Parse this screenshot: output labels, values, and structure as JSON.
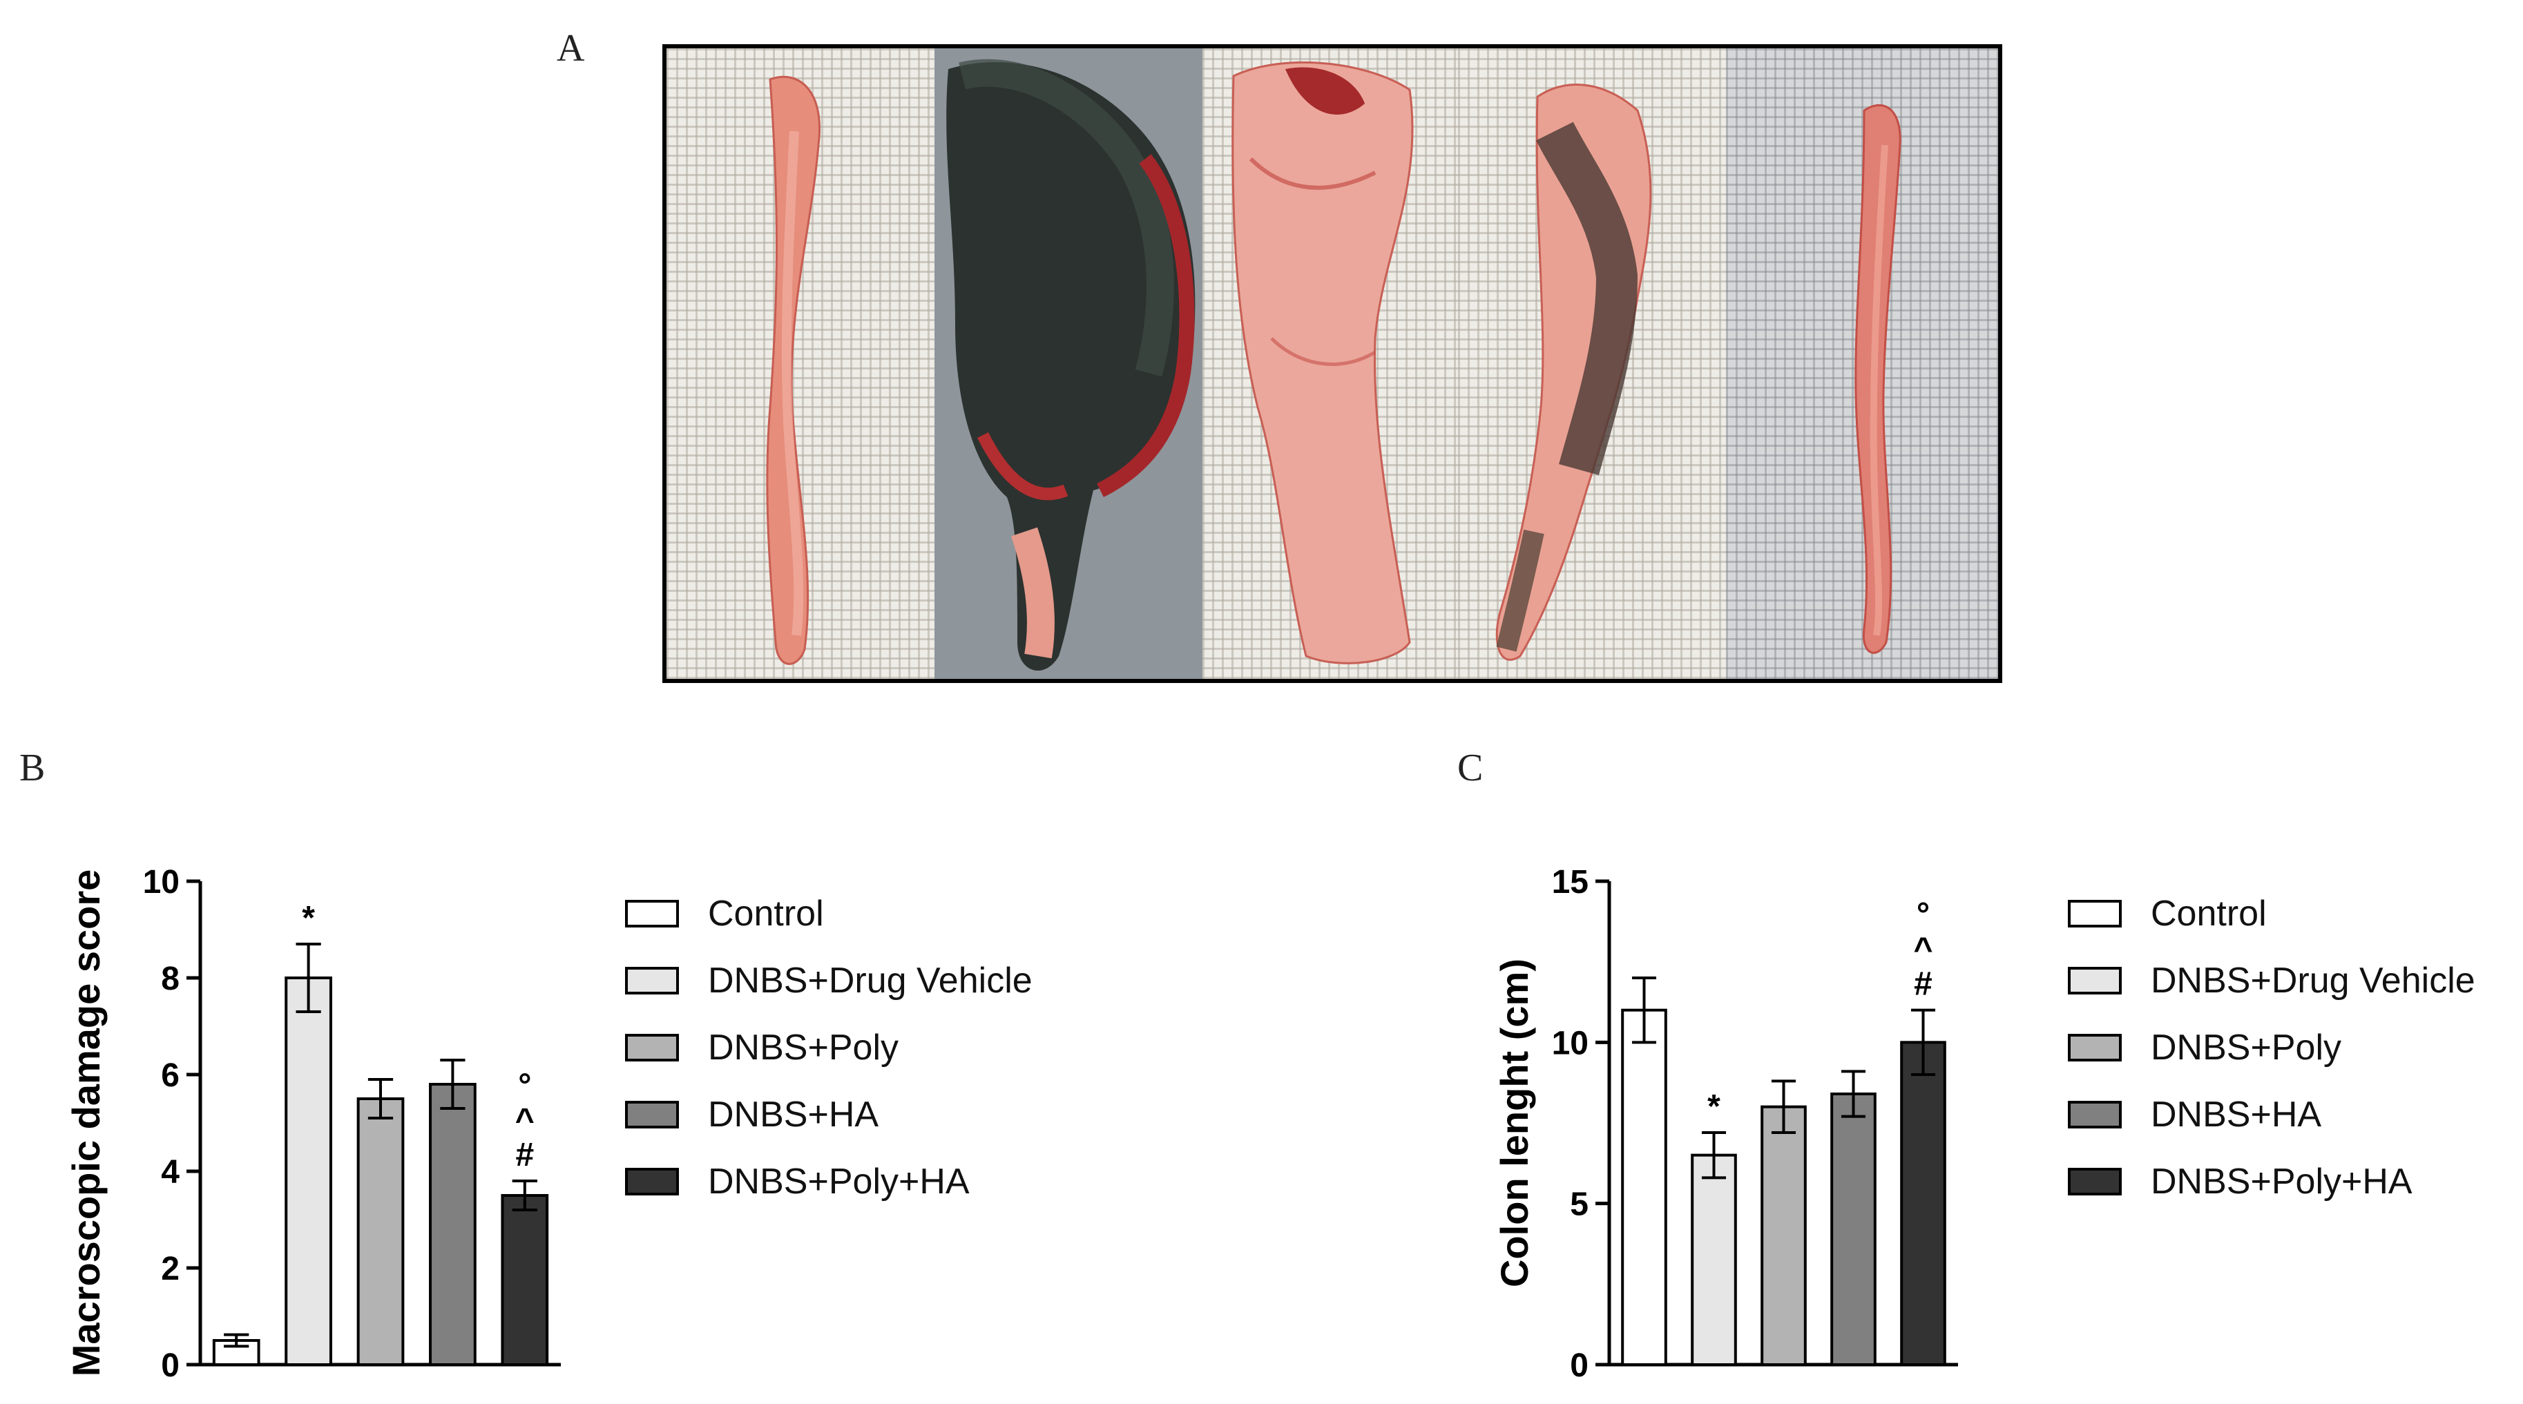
{
  "panels": {
    "a": "A",
    "b": "B",
    "c": "C"
  },
  "colors": {
    "series": [
      "#ffffff",
      "#e6e6e6",
      "#b3b3b3",
      "#808080",
      "#333333"
    ],
    "axis": "#000000"
  },
  "legend": [
    "Control",
    "DNBS+Drug Vehicle",
    "DNBS+Poly",
    "DNBS+HA",
    "DNBS+Poly+HA"
  ],
  "chart_data": [
    {
      "type": "bar",
      "panel": "B",
      "title": "",
      "xlabel": "",
      "ylabel": "Macroscopic damage score",
      "categories": [
        "Control",
        "DNBS+Drug Vehicle",
        "DNBS+Poly",
        "DNBS+HA",
        "DNBS+Poly+HA"
      ],
      "values": [
        0.5,
        8.0,
        5.5,
        5.8,
        3.5
      ],
      "errors": [
        0.12,
        0.7,
        0.4,
        0.5,
        0.3
      ],
      "annotations": [
        [],
        [
          "*"
        ],
        [],
        [],
        [
          "#",
          "^",
          "°"
        ]
      ],
      "ylim": [
        0,
        10
      ],
      "yticks": [
        0,
        2,
        4,
        6,
        8,
        10
      ],
      "legend_position": "right"
    },
    {
      "type": "bar",
      "panel": "C",
      "title": "",
      "xlabel": "",
      "ylabel": "Colon lenght (cm)",
      "categories": [
        "Control",
        "DNBS+Drug Vehicle",
        "DNBS+Poly",
        "DNBS+HA",
        "DNBS+Poly+HA"
      ],
      "values": [
        11.0,
        6.5,
        8.0,
        8.4,
        10.0
      ],
      "errors": [
        1.0,
        0.7,
        0.8,
        0.7,
        1.0
      ],
      "annotations": [
        [],
        [
          "*"
        ],
        [],
        [],
        [
          "#",
          "^",
          "°"
        ]
      ],
      "ylim": [
        0,
        15
      ],
      "yticks": [
        0,
        5,
        10,
        15
      ],
      "legend_position": "right"
    }
  ]
}
